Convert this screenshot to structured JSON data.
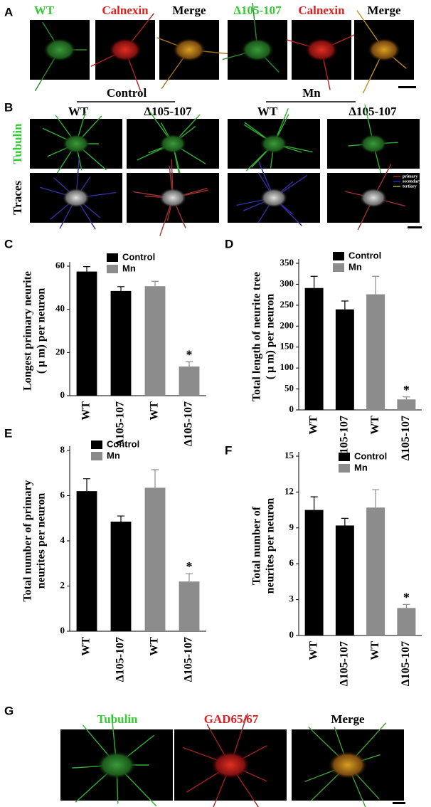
{
  "panel_labels": [
    "A",
    "B",
    "C",
    "D",
    "E",
    "F",
    "G"
  ],
  "panel_a": {
    "headers": [
      "WT",
      "Calnexin",
      "Merge",
      "Δ105-107",
      "Calnexin",
      "Merge"
    ]
  },
  "panel_b": {
    "groups": [
      "Control",
      "Mn"
    ],
    "columns": [
      "WT",
      "Δ105-107",
      "WT",
      "Δ105-107"
    ],
    "rows": [
      "Tubulin",
      "Traces"
    ],
    "trace_legend": [
      "primary",
      "secondary",
      "tertiary"
    ]
  },
  "panel_g": {
    "headers": [
      "Tubulin",
      "GAD65/67",
      "Merge"
    ]
  },
  "chart_data": [
    {
      "type": "bar",
      "y_label": [
        "Longest primary neurite",
        "( μ m) per neuron"
      ],
      "categories": [
        "WT",
        "Δ105-107",
        "WT",
        "Δ105-107"
      ],
      "series": [
        {
          "name": "Control",
          "color": "#000000",
          "values": [
            57.5,
            48.5,
            null,
            null
          ],
          "errors": [
            2.3,
            2.0,
            null,
            null
          ]
        },
        {
          "name": "Mn",
          "color": "#8c8c8c",
          "values": [
            null,
            null,
            50.7,
            13.5
          ],
          "errors": [
            null,
            null,
            2.3,
            2.2
          ]
        }
      ],
      "ylim": [
        0,
        60
      ],
      "yticks": [
        0,
        20,
        40,
        60
      ],
      "annotation": "*"
    },
    {
      "type": "bar",
      "y_label": [
        "Total length of neurite tree",
        "( μ m) per neuron"
      ],
      "categories": [
        "WT",
        "Δ105-107",
        "WT",
        "Δ105-107"
      ],
      "series": [
        {
          "name": "Control",
          "color": "#000000",
          "values": [
            291,
            240,
            null,
            null
          ],
          "errors": [
            28,
            20,
            null,
            null
          ]
        },
        {
          "name": "Mn",
          "color": "#8c8c8c",
          "values": [
            null,
            null,
            276,
            25
          ],
          "errors": [
            null,
            null,
            43,
            6
          ]
        }
      ],
      "ylim": [
        0,
        350
      ],
      "yticks": [
        0,
        50,
        100,
        150,
        200,
        250,
        300,
        350
      ],
      "annotation": "*"
    },
    {
      "type": "bar",
      "y_label": [
        "Total number of primary",
        "neurites per neuron"
      ],
      "categories": [
        "WT",
        "Δ105-107",
        "WT",
        "Δ105-107"
      ],
      "series": [
        {
          "name": "Control",
          "color": "#000000",
          "values": [
            6.2,
            4.85,
            null,
            null
          ],
          "errors": [
            0.55,
            0.25,
            null,
            null
          ]
        },
        {
          "name": "Mn",
          "color": "#8c8c8c",
          "values": [
            null,
            null,
            6.35,
            2.2
          ],
          "errors": [
            null,
            null,
            0.8,
            0.35
          ]
        }
      ],
      "ylim": [
        0,
        8
      ],
      "yticks": [
        0,
        2,
        4,
        6,
        8
      ],
      "annotation": "*"
    },
    {
      "type": "bar",
      "y_label": [
        "Total number of",
        "neurites per neuron"
      ],
      "categories": [
        "WT",
        "Δ105-107",
        "WT",
        "Δ105-107"
      ],
      "series": [
        {
          "name": "Control",
          "color": "#000000",
          "values": [
            10.5,
            9.2,
            null,
            null
          ],
          "errors": [
            1.1,
            0.6,
            null,
            null
          ]
        },
        {
          "name": "Mn",
          "color": "#8c8c8c",
          "values": [
            null,
            null,
            10.7,
            2.3
          ],
          "errors": [
            null,
            null,
            1.5,
            0.3
          ]
        }
      ],
      "ylim": [
        0,
        15
      ],
      "yticks": [
        0,
        3,
        6,
        9,
        12,
        15
      ],
      "annotation": "*"
    }
  ]
}
